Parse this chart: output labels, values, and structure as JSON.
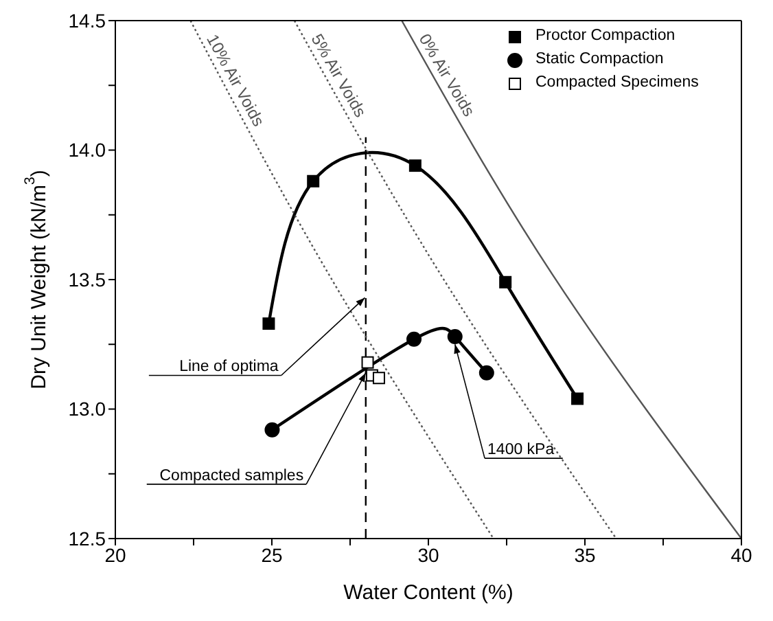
{
  "chart_data": {
    "type": "line",
    "xlabel": "Water Content (%)",
    "ylabel": "Dry Unit Weight (kN/m$^{3}$)",
    "xlim": [
      20,
      40
    ],
    "xticks": [
      20,
      {
        "value": 22.5,
        "label": null
      },
      25,
      {
        "value": 27.5,
        "label": null
      },
      30,
      {
        "value": 32.5,
        "label": null
      },
      35,
      {
        "value": 37.5,
        "label": null
      },
      40
    ],
    "ylim": [
      12.5,
      14.5
    ],
    "yticks": [
      12.5,
      {
        "value": 12.75,
        "label": null
      },
      {
        "value": 13,
        "label": "13.0"
      },
      {
        "value": 13.25,
        "label": null
      },
      13.5,
      {
        "value": 13.75,
        "label": null
      },
      {
        "value": 14,
        "label": "14.0"
      },
      {
        "value": 14.25,
        "label": null
      },
      14.5
    ],
    "legend": "top right",
    "series": [
      {
        "name": "Proctor Compaction",
        "marker": "square",
        "color": "#000000",
        "x": [
          24.9,
          26.32,
          29.58,
          32.46,
          34.76
        ],
        "values": [
          13.33,
          13.88,
          13.94,
          13.49,
          13.04
        ]
      },
      {
        "name": "Static Compaction",
        "marker": "circle",
        "color": "#000000",
        "x": [
          25.01,
          29.54,
          30.85,
          31.86
        ],
        "values": [
          12.92,
          13.27,
          13.28,
          13.14
        ]
      },
      {
        "name": "Compacted Specimens",
        "type": "scatter",
        "marker": "square",
        "color": "#000000",
        "x": [
          28.06,
          28.2,
          28.42
        ],
        "values": [
          13.18,
          13.13,
          13.12
        ]
      },
      {
        "marker": "none",
        "line_style": "dashed",
        "color": "#000000",
        "x": [
          28,
          28
        ],
        "values": [
          12.5,
          14.05
        ]
      },
      {
        "name": "0% Air Voids",
        "marker": "none",
        "line_style": "solid",
        "color": "#555555",
        "x": [
          29.15,
          33.96,
          40
        ],
        "values": [
          14.5,
          13.52,
          12.5
        ]
      },
      {
        "name": "5% Air Voids",
        "marker": "none",
        "line_style": "dotted",
        "color": "#555555",
        "x": [
          25.72,
          30.39,
          36.0
        ],
        "values": [
          14.5,
          13.52,
          12.5
        ]
      },
      {
        "name": "10% Air Voids",
        "marker": "none",
        "line_style": "dotted",
        "color": "#555555",
        "x": [
          22.4,
          26.82,
          32.08
        ],
        "values": [
          14.5,
          13.52,
          12.5
        ]
      }
    ],
    "annotations": [
      {
        "text": "Line of optima",
        "x": 27.97,
        "y": 13.43
      },
      {
        "text": "Compacted samples",
        "x": 28.0,
        "y": 13.14
      },
      {
        "text": "1400 kPa",
        "x": 30.85,
        "y": 13.25
      }
    ]
  }
}
